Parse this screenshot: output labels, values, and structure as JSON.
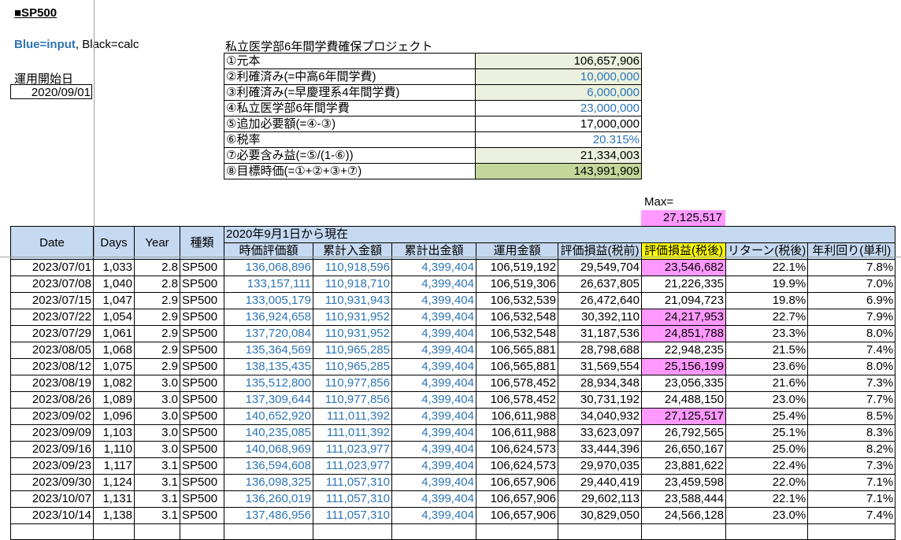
{
  "sheet_title": "■SP500",
  "legend": {
    "blue": "Blue=input",
    "rest": ", Black=calc"
  },
  "start": {
    "label": "運用開始日",
    "value": "2020/09/01"
  },
  "colors": {
    "input_blue": "#2e75b6",
    "header_bg": "#c5d9f1",
    "highlight_pink": "#ff99ff",
    "highlight_yellow": "#ffff00",
    "light_green": "#ebf1de",
    "dark_green": "#c4d79b"
  },
  "project": {
    "title": "私立医学部6年間学費確保プロジェクト",
    "rows": [
      {
        "label": "①元本",
        "value": "106,657,906",
        "input": false,
        "fill": "light"
      },
      {
        "label": "②利確済み(=中高6年間学費)",
        "value": "10,000,000",
        "input": true,
        "fill": "light"
      },
      {
        "label": "③利確済み(=早慶理系4年間学費)",
        "value": "6,000,000",
        "input": true,
        "fill": "light"
      },
      {
        "label": "④私立医学部6年間学費",
        "value": "23,000,000",
        "input": true,
        "fill": "none"
      },
      {
        "label": "⑤追加必要額(=④-③)",
        "value": "17,000,000",
        "input": false,
        "fill": "none"
      },
      {
        "label": "⑥税率",
        "value": "20.315%",
        "input": true,
        "fill": "none"
      },
      {
        "label": "⑦必要含み益(=⑤/(1-⑥))",
        "value": "21,334,003",
        "input": false,
        "fill": "light"
      },
      {
        "label": "⑧目標時価(=①+②+③+⑦)",
        "value": "143,991,909",
        "input": false,
        "fill": "dark"
      }
    ]
  },
  "max": {
    "label": "Max=",
    "value": "27,125,517"
  },
  "table": {
    "group_header": "2020年9月1日から現在",
    "headers": [
      "Date",
      "Days",
      "Year",
      "種類",
      "時価評価額",
      "累計入金額",
      "累計出金額",
      "運用金額",
      "評価損益(税前)",
      "評価損益(税後)",
      "リターン(税後)",
      "年利回り(単利)"
    ],
    "rows": [
      [
        "2023/07/01",
        "1,033",
        "2.8",
        "SP500",
        "136,068,896",
        "110,918,596",
        "4,399,404",
        "106,519,192",
        "29,549,704",
        "23,546,682",
        "22.1%",
        "7.8%",
        true
      ],
      [
        "2023/07/08",
        "1,040",
        "2.8",
        "SP500",
        "133,157,111",
        "110,918,710",
        "4,399,404",
        "106,519,306",
        "26,637,805",
        "21,226,335",
        "19.9%",
        "7.0%",
        false
      ],
      [
        "2023/07/15",
        "1,047",
        "2.9",
        "SP500",
        "133,005,179",
        "110,931,943",
        "4,399,404",
        "106,532,539",
        "26,472,640",
        "21,094,723",
        "19.8%",
        "6.9%",
        false
      ],
      [
        "2023/07/22",
        "1,054",
        "2.9",
        "SP500",
        "136,924,658",
        "110,931,952",
        "4,399,404",
        "106,532,548",
        "30,392,110",
        "24,217,953",
        "22.7%",
        "7.9%",
        true
      ],
      [
        "2023/07/29",
        "1,061",
        "2.9",
        "SP500",
        "137,720,084",
        "110,931,952",
        "4,399,404",
        "106,532,548",
        "31,187,536",
        "24,851,788",
        "23.3%",
        "8.0%",
        true
      ],
      [
        "2023/08/05",
        "1,068",
        "2.9",
        "SP500",
        "135,364,569",
        "110,965,285",
        "4,399,404",
        "106,565,881",
        "28,798,688",
        "22,948,235",
        "21.5%",
        "7.4%",
        false
      ],
      [
        "2023/08/12",
        "1,075",
        "2.9",
        "SP500",
        "138,135,435",
        "110,965,285",
        "4,399,404",
        "106,565,881",
        "31,569,554",
        "25,156,199",
        "23.6%",
        "8.0%",
        true
      ],
      [
        "2023/08/19",
        "1,082",
        "3.0",
        "SP500",
        "135,512,800",
        "110,977,856",
        "4,399,404",
        "106,578,452",
        "28,934,348",
        "23,056,335",
        "21.6%",
        "7.3%",
        false
      ],
      [
        "2023/08/26",
        "1,089",
        "3.0",
        "SP500",
        "137,309,644",
        "110,977,856",
        "4,399,404",
        "106,578,452",
        "30,731,192",
        "24,488,150",
        "23.0%",
        "7.7%",
        false
      ],
      [
        "2023/09/02",
        "1,096",
        "3.0",
        "SP500",
        "140,652,920",
        "111,011,392",
        "4,399,404",
        "106,611,988",
        "34,040,932",
        "27,125,517",
        "25.4%",
        "8.5%",
        true
      ],
      [
        "2023/09/09",
        "1,103",
        "3.0",
        "SP500",
        "140,235,085",
        "111,011,392",
        "4,399,404",
        "106,611,988",
        "33,623,097",
        "26,792,565",
        "25.1%",
        "8.3%",
        false
      ],
      [
        "2023/09/16",
        "1,110",
        "3.0",
        "SP500",
        "140,068,969",
        "111,023,977",
        "4,399,404",
        "106,624,573",
        "33,444,396",
        "26,650,167",
        "25.0%",
        "8.2%",
        false
      ],
      [
        "2023/09/23",
        "1,117",
        "3.1",
        "SP500",
        "136,594,608",
        "111,023,977",
        "4,399,404",
        "106,624,573",
        "29,970,035",
        "23,881,622",
        "22.4%",
        "7.3%",
        false
      ],
      [
        "2023/09/30",
        "1,124",
        "3.1",
        "SP500",
        "136,098,325",
        "111,057,310",
        "4,399,404",
        "106,657,906",
        "29,440,419",
        "23,459,598",
        "22.0%",
        "7.1%",
        false
      ],
      [
        "2023/10/07",
        "1,131",
        "3.1",
        "SP500",
        "136,260,019",
        "111,057,310",
        "4,399,404",
        "106,657,906",
        "29,602,113",
        "23,588,444",
        "22.1%",
        "7.1%",
        false
      ],
      [
        "2023/10/14",
        "1,138",
        "3.1",
        "SP500",
        "137,486,956",
        "111,057,310",
        "4,399,404",
        "106,657,906",
        "30,829,050",
        "24,566,128",
        "23.0%",
        "7.4%",
        false
      ]
    ]
  }
}
